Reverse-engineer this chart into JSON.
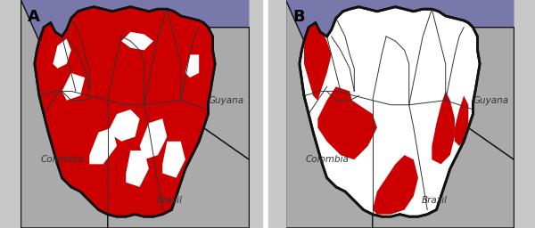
{
  "background_color": "#c8c8c8",
  "sea_color": "#7878aa",
  "venezuela_fill": "#ffffff",
  "malaria_color": "#cc0000",
  "neighbor_fill": "#aaaaaa",
  "border_color": "#111111",
  "state_border_color": "#333333",
  "label_colombia": "Colombia",
  "label_brazil": "Brazil",
  "label_guyana": "Guyana",
  "label_a": "A",
  "label_b": "B",
  "figsize": [
    6.0,
    2.56
  ],
  "dpi": 100
}
